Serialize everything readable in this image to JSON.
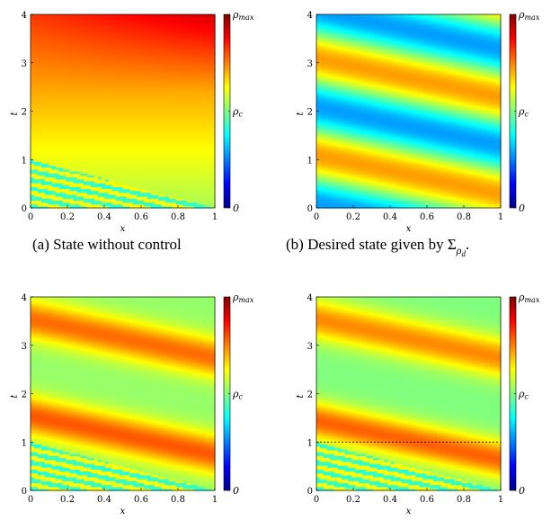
{
  "figure": {
    "captions": {
      "a": "(a) State without control",
      "b_prefix": "(b) Desired state given by ",
      "b_sigma": "Σ",
      "b_rho": "ρ",
      "b_d": "d",
      "b_period": "."
    }
  },
  "chart_data": [
    {
      "id": "a",
      "type": "heatmap",
      "field": "uncontrolled",
      "title": "",
      "xlabel": "x",
      "ylabel": "t",
      "xlim": [
        0,
        1
      ],
      "ylim": [
        0,
        4
      ],
      "xticks": [
        "0",
        "0.2",
        "0.4",
        "0.6",
        "0.8",
        "1"
      ],
      "yticks": [
        "0",
        "1",
        "2",
        "3",
        "4"
      ],
      "colorbar": {
        "ticks": [
          "ρmax",
          "ρc",
          "0"
        ],
        "values": [
          1.0,
          0.5,
          0.0
        ]
      },
      "dashed_line_t": null
    },
    {
      "id": "b",
      "type": "heatmap",
      "field": "desired",
      "title": "",
      "xlabel": "x",
      "ylabel": "t",
      "xlim": [
        0,
        1
      ],
      "ylim": [
        0,
        4
      ],
      "xticks": [
        "0",
        "0.2",
        "0.4",
        "0.6",
        "0.8",
        "1"
      ],
      "yticks": [
        "0",
        "1",
        "2",
        "3",
        "4"
      ],
      "colorbar": {
        "ticks": [
          "ρmax",
          "ρc",
          "0"
        ],
        "values": [
          1.0,
          0.5,
          0.0
        ]
      },
      "dashed_line_t": null
    },
    {
      "id": "c",
      "type": "heatmap",
      "field": "controlled",
      "title": "",
      "xlabel": "x",
      "ylabel": "t",
      "xlim": [
        0,
        1
      ],
      "ylim": [
        0,
        4
      ],
      "xticks": [
        "0",
        "0.2",
        "0.4",
        "0.6",
        "0.8",
        "1"
      ],
      "yticks": [
        "0",
        "1",
        "2",
        "3",
        "4"
      ],
      "colorbar": {
        "ticks": [
          "ρmax",
          "ρc",
          "0"
        ],
        "values": [
          1.0,
          0.5,
          0.0
        ]
      },
      "dashed_line_t": null
    },
    {
      "id": "d",
      "type": "heatmap",
      "field": "controlled_switch",
      "title": "",
      "xlabel": "x",
      "ylabel": "t",
      "xlim": [
        0,
        1
      ],
      "ylim": [
        0,
        4
      ],
      "xticks": [
        "0",
        "0.2",
        "0.4",
        "0.6",
        "0.8",
        "1"
      ],
      "yticks": [
        "0",
        "1",
        "2",
        "3",
        "4"
      ],
      "colorbar": {
        "ticks": [
          "ρmax",
          "ρc",
          "0"
        ],
        "values": [
          1.0,
          0.5,
          0.0
        ]
      },
      "dashed_line_t": 1
    }
  ]
}
